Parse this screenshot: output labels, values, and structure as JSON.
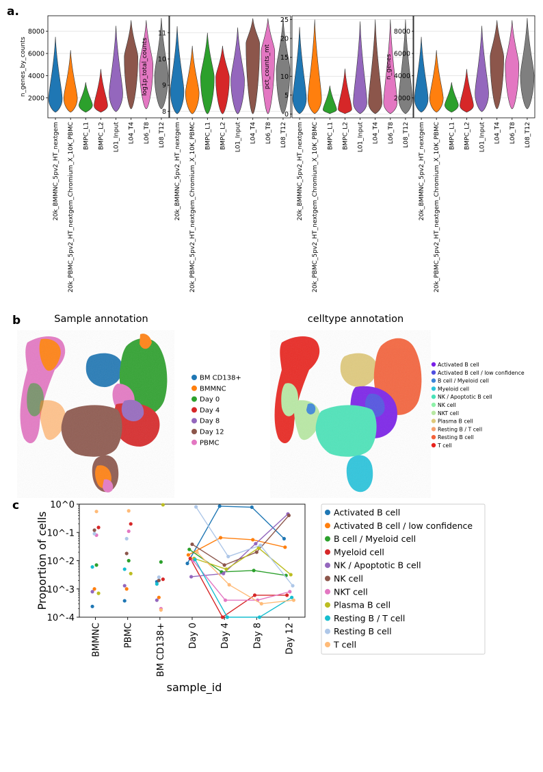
{
  "panels": {
    "a": "a.",
    "b": "b",
    "c": "c"
  },
  "colors": {
    "violin": [
      "#1f77b4",
      "#ff7f0e",
      "#2ca02c",
      "#d62728",
      "#9467bd",
      "#8c564b",
      "#e377c2",
      "#7f7f7f"
    ],
    "sample": {
      "BM CD138+": "#1f77b4",
      "BMMNC": "#ff7f0e",
      "Day 0": "#2ca02c",
      "Day 4": "#d62728",
      "Day 8": "#9467bd",
      "Day 12": "#8c564b",
      "PBMC": "#e377c2"
    },
    "celltype": [
      "#7a1fe8",
      "#4f4fe0",
      "#3b84d8",
      "#28c4dc",
      "#49e3b8",
      "#8ef2a9",
      "#b7e8a2",
      "#dfc97b",
      "#f6a06e",
      "#f4623a",
      "#e8231d"
    ],
    "prop": [
      "#1f77b4",
      "#ff7f0e",
      "#2ca02c",
      "#d62728",
      "#9467bd",
      "#8c564b",
      "#e377c2",
      "#bcbd22",
      "#17becf",
      "#aec7e8",
      "#ffbb78"
    ]
  },
  "violins": {
    "categories": [
      "20k_BMMNC_5pv2_HT_nextgem",
      "20k_PBMC_5pv2_HT_nextgem_Chromium_X_10K_PBMC",
      "BMPC_L1",
      "BMPC_L2",
      "L01_Input",
      "L04_T4",
      "L06_T8",
      "L08_T12"
    ],
    "plots": [
      {
        "ylabel": "n_genes_by_counts",
        "yticks": [
          2000,
          4000,
          6000,
          8000
        ],
        "ylim": [
          200,
          9400
        ],
        "stats": [
          [
            700,
            1900,
            7500
          ],
          [
            700,
            1950,
            6300
          ],
          [
            700,
            1350,
            3400
          ],
          [
            700,
            1300,
            4600
          ],
          [
            750,
            2400,
            8500
          ],
          [
            1000,
            5700,
            9000
          ],
          [
            1000,
            5000,
            9000
          ],
          [
            1000,
            4000,
            9200
          ]
        ]
      },
      {
        "ylabel": "log1p_total_counts",
        "yticks": [
          8,
          9,
          10,
          11
        ],
        "ylim": [
          7.75,
          11.65
        ],
        "stats": [
          [
            7.9,
            8.75,
            11.25
          ],
          [
            7.9,
            8.7,
            10.5
          ],
          [
            7.9,
            9.3,
            11.0
          ],
          [
            7.9,
            9.3,
            10.5
          ],
          [
            7.9,
            9.2,
            11.2
          ],
          [
            7.9,
            10.6,
            11.55
          ],
          [
            7.9,
            10.3,
            11.55
          ],
          [
            7.9,
            9.6,
            11.55
          ]
        ]
      },
      {
        "ylabel": "pct_counts_mt",
        "yticks": [
          0,
          5,
          10,
          15,
          20,
          25
        ],
        "ylim": [
          -1,
          26
        ],
        "stats": [
          [
            0.1,
            4.0,
            23.0
          ],
          [
            0.1,
            4.0,
            25.0
          ],
          [
            0.1,
            1.2,
            7.5
          ],
          [
            0.1,
            1.3,
            12.0
          ],
          [
            0.1,
            3.0,
            24.5
          ],
          [
            0.1,
            3.0,
            25.0
          ],
          [
            0.1,
            3.0,
            25.0
          ],
          [
            0.1,
            4.0,
            25.0
          ]
        ]
      },
      {
        "ylabel": "n_genes",
        "yticks": [
          2000,
          4000,
          6000,
          8000
        ],
        "ylim": [
          200,
          9400
        ],
        "stats": [
          [
            700,
            1900,
            7500
          ],
          [
            700,
            1950,
            6300
          ],
          [
            700,
            1350,
            3400
          ],
          [
            700,
            1300,
            4600
          ],
          [
            750,
            2400,
            8500
          ],
          [
            1000,
            5700,
            9000
          ],
          [
            1000,
            5000,
            9000
          ],
          [
            1000,
            4000,
            9200
          ]
        ]
      }
    ]
  },
  "umap": {
    "sample_title": "Sample annotation",
    "celltype_title": "celltype annotation",
    "sample_legend": [
      "BM CD138+",
      "BMMNC",
      "Day 0",
      "Day 4",
      "Day 8",
      "Day 12",
      "PBMC"
    ],
    "celltype_legend": [
      "Activated B cell",
      "Activated B cell / low confidence",
      "B cell / Myeloid cell",
      "Myeloid cell",
      "NK / Apoptotic B cell",
      "NK cell",
      "NKT cell",
      "Plasma B cell",
      "Resting B / T cell",
      "Resting B cell",
      "T cell"
    ]
  },
  "chart_data": {
    "type": "scatter",
    "xlabel": "sample_id",
    "ylabel": "Proportion of cells",
    "yscale": "log",
    "ylim": [
      0.0001,
      1.0
    ],
    "yticks": [
      "10^0",
      "10^-1",
      "10^-2",
      "10^-3",
      "10^-4"
    ],
    "categories": [
      "BMMNC",
      "PBMC",
      "BM CD138+",
      "Day 0",
      "Day 4",
      "Day 8",
      "Day 12"
    ],
    "legend_position": "right",
    "series": [
      {
        "name": "Activated B cell",
        "values": [
          0.00024,
          0.00038,
          0.0018,
          0.008,
          0.85,
          0.78,
          0.06
        ]
      },
      {
        "name": "Activated B cell / low confidence",
        "values": [
          0.001,
          0.001,
          0.0005,
          0.016,
          0.065,
          0.055,
          0.03
        ]
      },
      {
        "name": "B cell / Myeloid cell",
        "values": [
          0.007,
          0.01,
          0.009,
          0.025,
          0.004,
          0.0045,
          0.003
        ]
      },
      {
        "name": "Myeloid cell",
        "values": [
          0.15,
          0.2,
          0.0022,
          0.012,
          0.0001,
          0.0006,
          0.0006
        ]
      },
      {
        "name": "NK / Apoptotic B cell",
        "values": [
          0.0008,
          0.0013,
          0.0004,
          0.0027,
          0.0035,
          0.04,
          0.45
        ]
      },
      {
        "name": "NK cell",
        "values": [
          0.12,
          0.018,
          0.002,
          0.038,
          0.007,
          0.02,
          0.4
        ]
      },
      {
        "name": "NKT cell",
        "values": [
          0.08,
          0.11,
          0.0002,
          0.01,
          0.0004,
          0.0004,
          0.0008
        ]
      },
      {
        "name": "Plasma B cell",
        "values": [
          0.0007,
          0.0035,
          0.95,
          0.012,
          0.005,
          0.028,
          0.0032
        ]
      },
      {
        "name": "Resting B / T cell",
        "values": [
          0.006,
          0.005,
          0.0015,
          0.011,
          0.0001,
          0.0001,
          0.0005
        ]
      },
      {
        "name": "Resting B cell",
        "values": [
          0.09,
          0.06,
          0.0026,
          0.8,
          0.014,
          0.035,
          0.0013
        ]
      },
      {
        "name": "T cell",
        "values": [
          0.55,
          0.58,
          0.00018,
          0.02,
          0.0014,
          0.0003,
          0.0004
        ]
      }
    ]
  }
}
